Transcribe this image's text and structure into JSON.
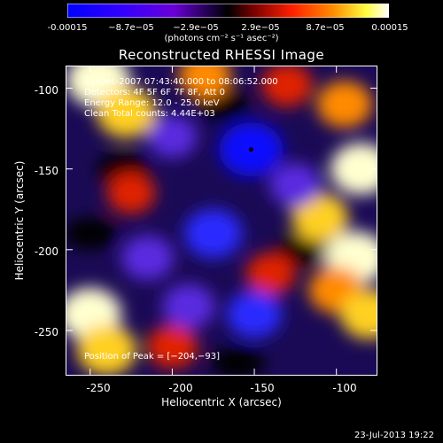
{
  "chart_data": {
    "type": "heatmap",
    "title": "Reconstructed RHESSI Image",
    "xlabel": "Heliocentric X (arcsec)",
    "ylabel": "Heliocentric Y (arcsec)",
    "xlim": [
      -265,
      -75
    ],
    "ylim": [
      -278,
      -86
    ],
    "xticks": [
      -250,
      -200,
      -150,
      -100
    ],
    "yticks": [
      -100,
      -150,
      -200,
      -250
    ],
    "colorbar": {
      "ticks": [
        "-0.00015",
        "−8.7e−05",
        "−2.9e−05",
        "2.9e−05",
        "8.7e−05",
        "0.00015"
      ],
      "units": "(photons cm⁻² s⁻¹ asec⁻²)",
      "range": [
        -0.00015,
        0.00015
      ]
    },
    "peak": {
      "label": "Position of Peak = [−204,−93]",
      "x": -204,
      "y": -93
    },
    "annotations": [
      "31-Dec-2007 07:43:40.000 to 08:06:52.000",
      "Detectors: 4F 5F 6F 7F 8F, Att 0",
      "Energy Range: 12.0 - 25.0 keV",
      "Clean      Total counts: 4.44E+03"
    ],
    "intensity_blobs": [
      {
        "x": -245,
        "y": -95,
        "v": 1.0
      },
      {
        "x": -228,
        "y": -115,
        "v": 0.85
      },
      {
        "x": -180,
        "y": -92,
        "v": 0.6
      },
      {
        "x": -130,
        "y": -98,
        "v": 0.55
      },
      {
        "x": -95,
        "y": -110,
        "v": 0.7
      },
      {
        "x": -85,
        "y": -150,
        "v": 0.9
      },
      {
        "x": -110,
        "y": -180,
        "v": 0.75
      },
      {
        "x": -88,
        "y": -205,
        "v": 0.95
      },
      {
        "x": -100,
        "y": -225,
        "v": 0.7
      },
      {
        "x": -80,
        "y": -240,
        "v": 0.8
      },
      {
        "x": -250,
        "y": -240,
        "v": 0.95
      },
      {
        "x": -240,
        "y": -262,
        "v": 0.85
      },
      {
        "x": -200,
        "y": -260,
        "v": 0.55
      },
      {
        "x": -225,
        "y": -165,
        "v": 0.45
      },
      {
        "x": -140,
        "y": -215,
        "v": 0.5
      },
      {
        "x": -200,
        "y": -130,
        "v": -0.5
      },
      {
        "x": -152,
        "y": -138,
        "v": -1.0
      },
      {
        "x": -175,
        "y": -190,
        "v": -0.8
      },
      {
        "x": -150,
        "y": -240,
        "v": -0.7
      },
      {
        "x": -215,
        "y": -205,
        "v": -0.6
      },
      {
        "x": -125,
        "y": -160,
        "v": -0.55
      },
      {
        "x": -190,
        "y": -235,
        "v": -0.6
      }
    ]
  },
  "footer": {
    "date": "23-Jul-2013 19:22"
  }
}
